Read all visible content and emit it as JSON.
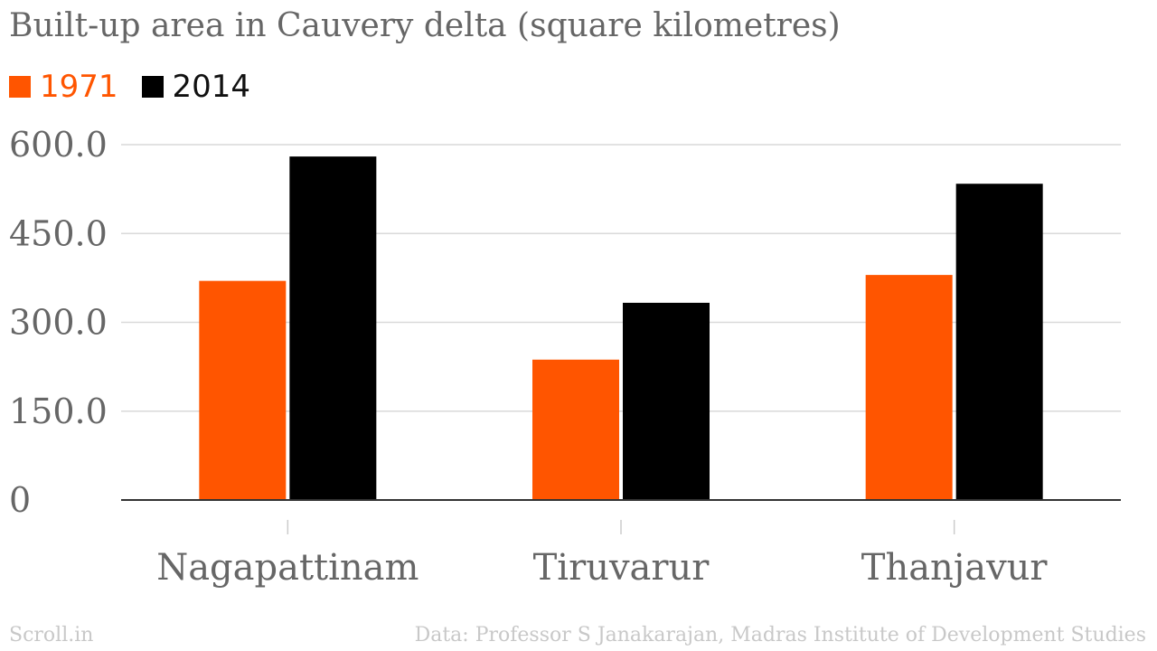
{
  "chart_data": {
    "type": "bar",
    "title": "Built-up area in Cauvery delta (square kilometres)",
    "categories": [
      "Nagapattinam",
      "Tiruvarur",
      "Thanjavur"
    ],
    "series": [
      {
        "name": "1971",
        "color": "#ff5500",
        "values": [
          370,
          237,
          380
        ]
      },
      {
        "name": "2014",
        "color": "#000000",
        "values": [
          580,
          333,
          534
        ]
      }
    ],
    "ylim": [
      0,
      600
    ],
    "yticks": [
      {
        "value": 0,
        "label": "0"
      },
      {
        "value": 150,
        "label": "150.0"
      },
      {
        "value": 300,
        "label": "300.0"
      },
      {
        "value": 450,
        "label": "450.0"
      },
      {
        "value": 600,
        "label": "600.0"
      }
    ],
    "grid": true,
    "legend_position": "top-left"
  },
  "footer": {
    "brand": "Scroll.in",
    "source": "Data: Professor S Janakarajan, Madras Institute of Development Studies"
  },
  "colors": {
    "text": "#666666",
    "grid": "#d9d9d9",
    "axis": "#333333",
    "footer": "#c8c8c8"
  }
}
